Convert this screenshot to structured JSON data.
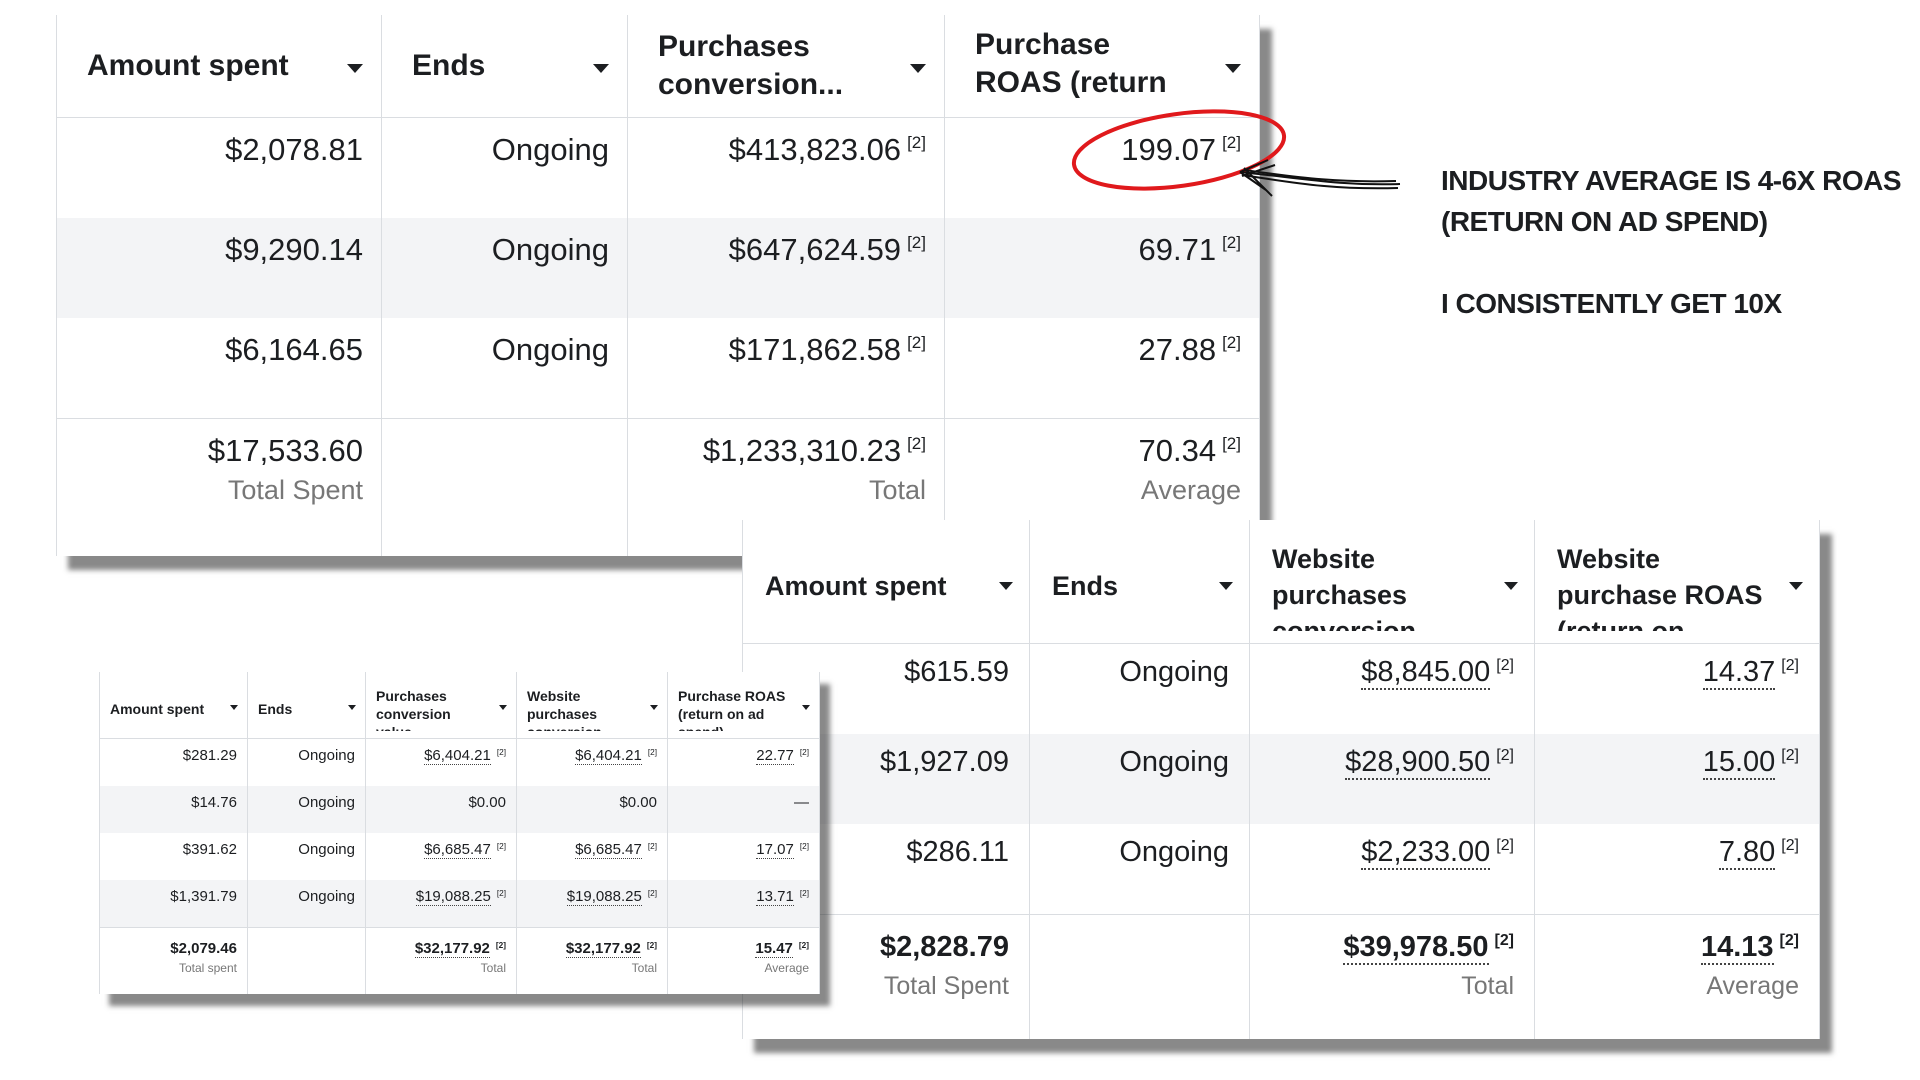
{
  "tables": [
    {
      "headers": [
        "Amount spent",
        "Ends",
        "Purchases conversion...",
        "Purchase ROAS (return on ad..."
      ],
      "rows": [
        [
          {
            "text": "$2,078.81"
          },
          {
            "text": "Ongoing"
          },
          {
            "text": "$413,823.06",
            "note": "[2]"
          },
          {
            "text": "199.07",
            "note": "[2]"
          }
        ],
        [
          {
            "text": "$9,290.14"
          },
          {
            "text": "Ongoing"
          },
          {
            "text": "$647,624.59",
            "note": "[2]"
          },
          {
            "text": "69.71",
            "note": "[2]"
          }
        ],
        [
          {
            "text": "$6,164.65"
          },
          {
            "text": "Ongoing"
          },
          {
            "text": "$171,862.58",
            "note": "[2]"
          },
          {
            "text": "27.88",
            "note": "[2]"
          }
        ]
      ],
      "totals": [
        {
          "text": "$17,533.60",
          "sub": "Total Spent"
        },
        null,
        {
          "text": "$1,233,310.23",
          "note": "[2]",
          "sub": "Total"
        },
        {
          "text": "70.34",
          "note": "[2]",
          "sub": "Average"
        }
      ]
    },
    {
      "headers": [
        "Amount spent",
        "Ends",
        "Website purchases conversion value",
        "Website purchase ROAS (return on..."
      ],
      "rows": [
        [
          {
            "text": "$615.59"
          },
          {
            "text": "Ongoing"
          },
          {
            "text": "$8,845.00",
            "note": "[2]"
          },
          {
            "text": "14.37",
            "note": "[2]"
          }
        ],
        [
          {
            "text": "$1,927.09"
          },
          {
            "text": "Ongoing"
          },
          {
            "text": "$28,900.50",
            "note": "[2]"
          },
          {
            "text": "15.00",
            "note": "[2]"
          }
        ],
        [
          {
            "text": "$286.11"
          },
          {
            "text": "Ongoing"
          },
          {
            "text": "$2,233.00",
            "note": "[2]"
          },
          {
            "text": "7.80",
            "note": "[2]"
          }
        ]
      ],
      "totals": [
        {
          "text": "$2,828.79",
          "sub": "Total Spent"
        },
        null,
        {
          "text": "$39,978.50",
          "note": "[2]",
          "sub": "Total"
        },
        {
          "text": "14.13",
          "note": "[2]",
          "sub": "Average"
        }
      ]
    },
    {
      "headers": [
        "Amount spent",
        "Ends",
        "Purchases conversion value",
        "Website purchases conversion value",
        "Purchase ROAS (return on ad spend)"
      ],
      "rows": [
        [
          {
            "text": "$281.29"
          },
          {
            "text": "Ongoing"
          },
          {
            "text": "$6,404.21",
            "note": "[2]"
          },
          {
            "text": "$6,404.21",
            "note": "[2]"
          },
          {
            "text": "22.77",
            "note": "[2]"
          }
        ],
        [
          {
            "text": "$14.76"
          },
          {
            "text": "Ongoing"
          },
          {
            "text": "$0.00"
          },
          {
            "text": "$0.00"
          },
          {
            "text": "—"
          }
        ],
        [
          {
            "text": "$391.62"
          },
          {
            "text": "Ongoing"
          },
          {
            "text": "$6,685.47",
            "note": "[2]"
          },
          {
            "text": "$6,685.47",
            "note": "[2]"
          },
          {
            "text": "17.07",
            "note": "[2]"
          }
        ],
        [
          {
            "text": "$1,391.79"
          },
          {
            "text": "Ongoing"
          },
          {
            "text": "$19,088.25",
            "note": "[2]"
          },
          {
            "text": "$19,088.25",
            "note": "[2]"
          },
          {
            "text": "13.71",
            "note": "[2]"
          }
        ]
      ],
      "totals": [
        {
          "text": "$2,079.46",
          "sub": "Total spent"
        },
        null,
        {
          "text": "$32,177.92",
          "note": "[2]",
          "sub": "Total"
        },
        {
          "text": "$32,177.92",
          "note": "[2]",
          "sub": "Total"
        },
        {
          "text": "15.47",
          "note": "[2]",
          "sub": "Average"
        }
      ]
    }
  ],
  "annotation": {
    "lines": [
      "INDUSTRY AVERAGE IS 4-6X ROAS (RETURN ON AD SPEND)",
      "I CONSISTENTLY GET 10X"
    ]
  }
}
